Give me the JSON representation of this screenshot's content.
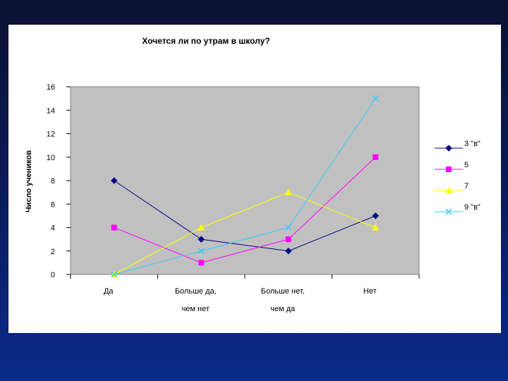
{
  "chart_data": {
    "type": "line",
    "title": "Хочется ли по утрам в школу?",
    "ylabel": "Число учеников",
    "xlabel": "",
    "ylim": [
      0,
      16
    ],
    "yticks": [
      0,
      2,
      4,
      6,
      8,
      10,
      12,
      14,
      16
    ],
    "categories": [
      [
        "Да"
      ],
      [
        "Больше да,",
        "чем нет"
      ],
      [
        "Больше нет,",
        "чем да"
      ],
      [
        "Нет"
      ]
    ],
    "grid": false,
    "plot_background": "#c0c0c0",
    "legend_position": "right",
    "series": [
      {
        "name": "3 \"в\"",
        "color": "#000080",
        "marker": "diamond",
        "values": [
          8,
          3,
          2,
          5
        ]
      },
      {
        "name": "5",
        "color": "#ff00ff",
        "marker": "square",
        "values": [
          4,
          1,
          3,
          10
        ]
      },
      {
        "name": "7",
        "color": "#ffff00",
        "marker": "triangle",
        "values": [
          0,
          4,
          7,
          4
        ]
      },
      {
        "name": "9 \"в\"",
        "color": "#33ccff",
        "marker": "x",
        "values": [
          0,
          2,
          4,
          15
        ]
      }
    ]
  }
}
